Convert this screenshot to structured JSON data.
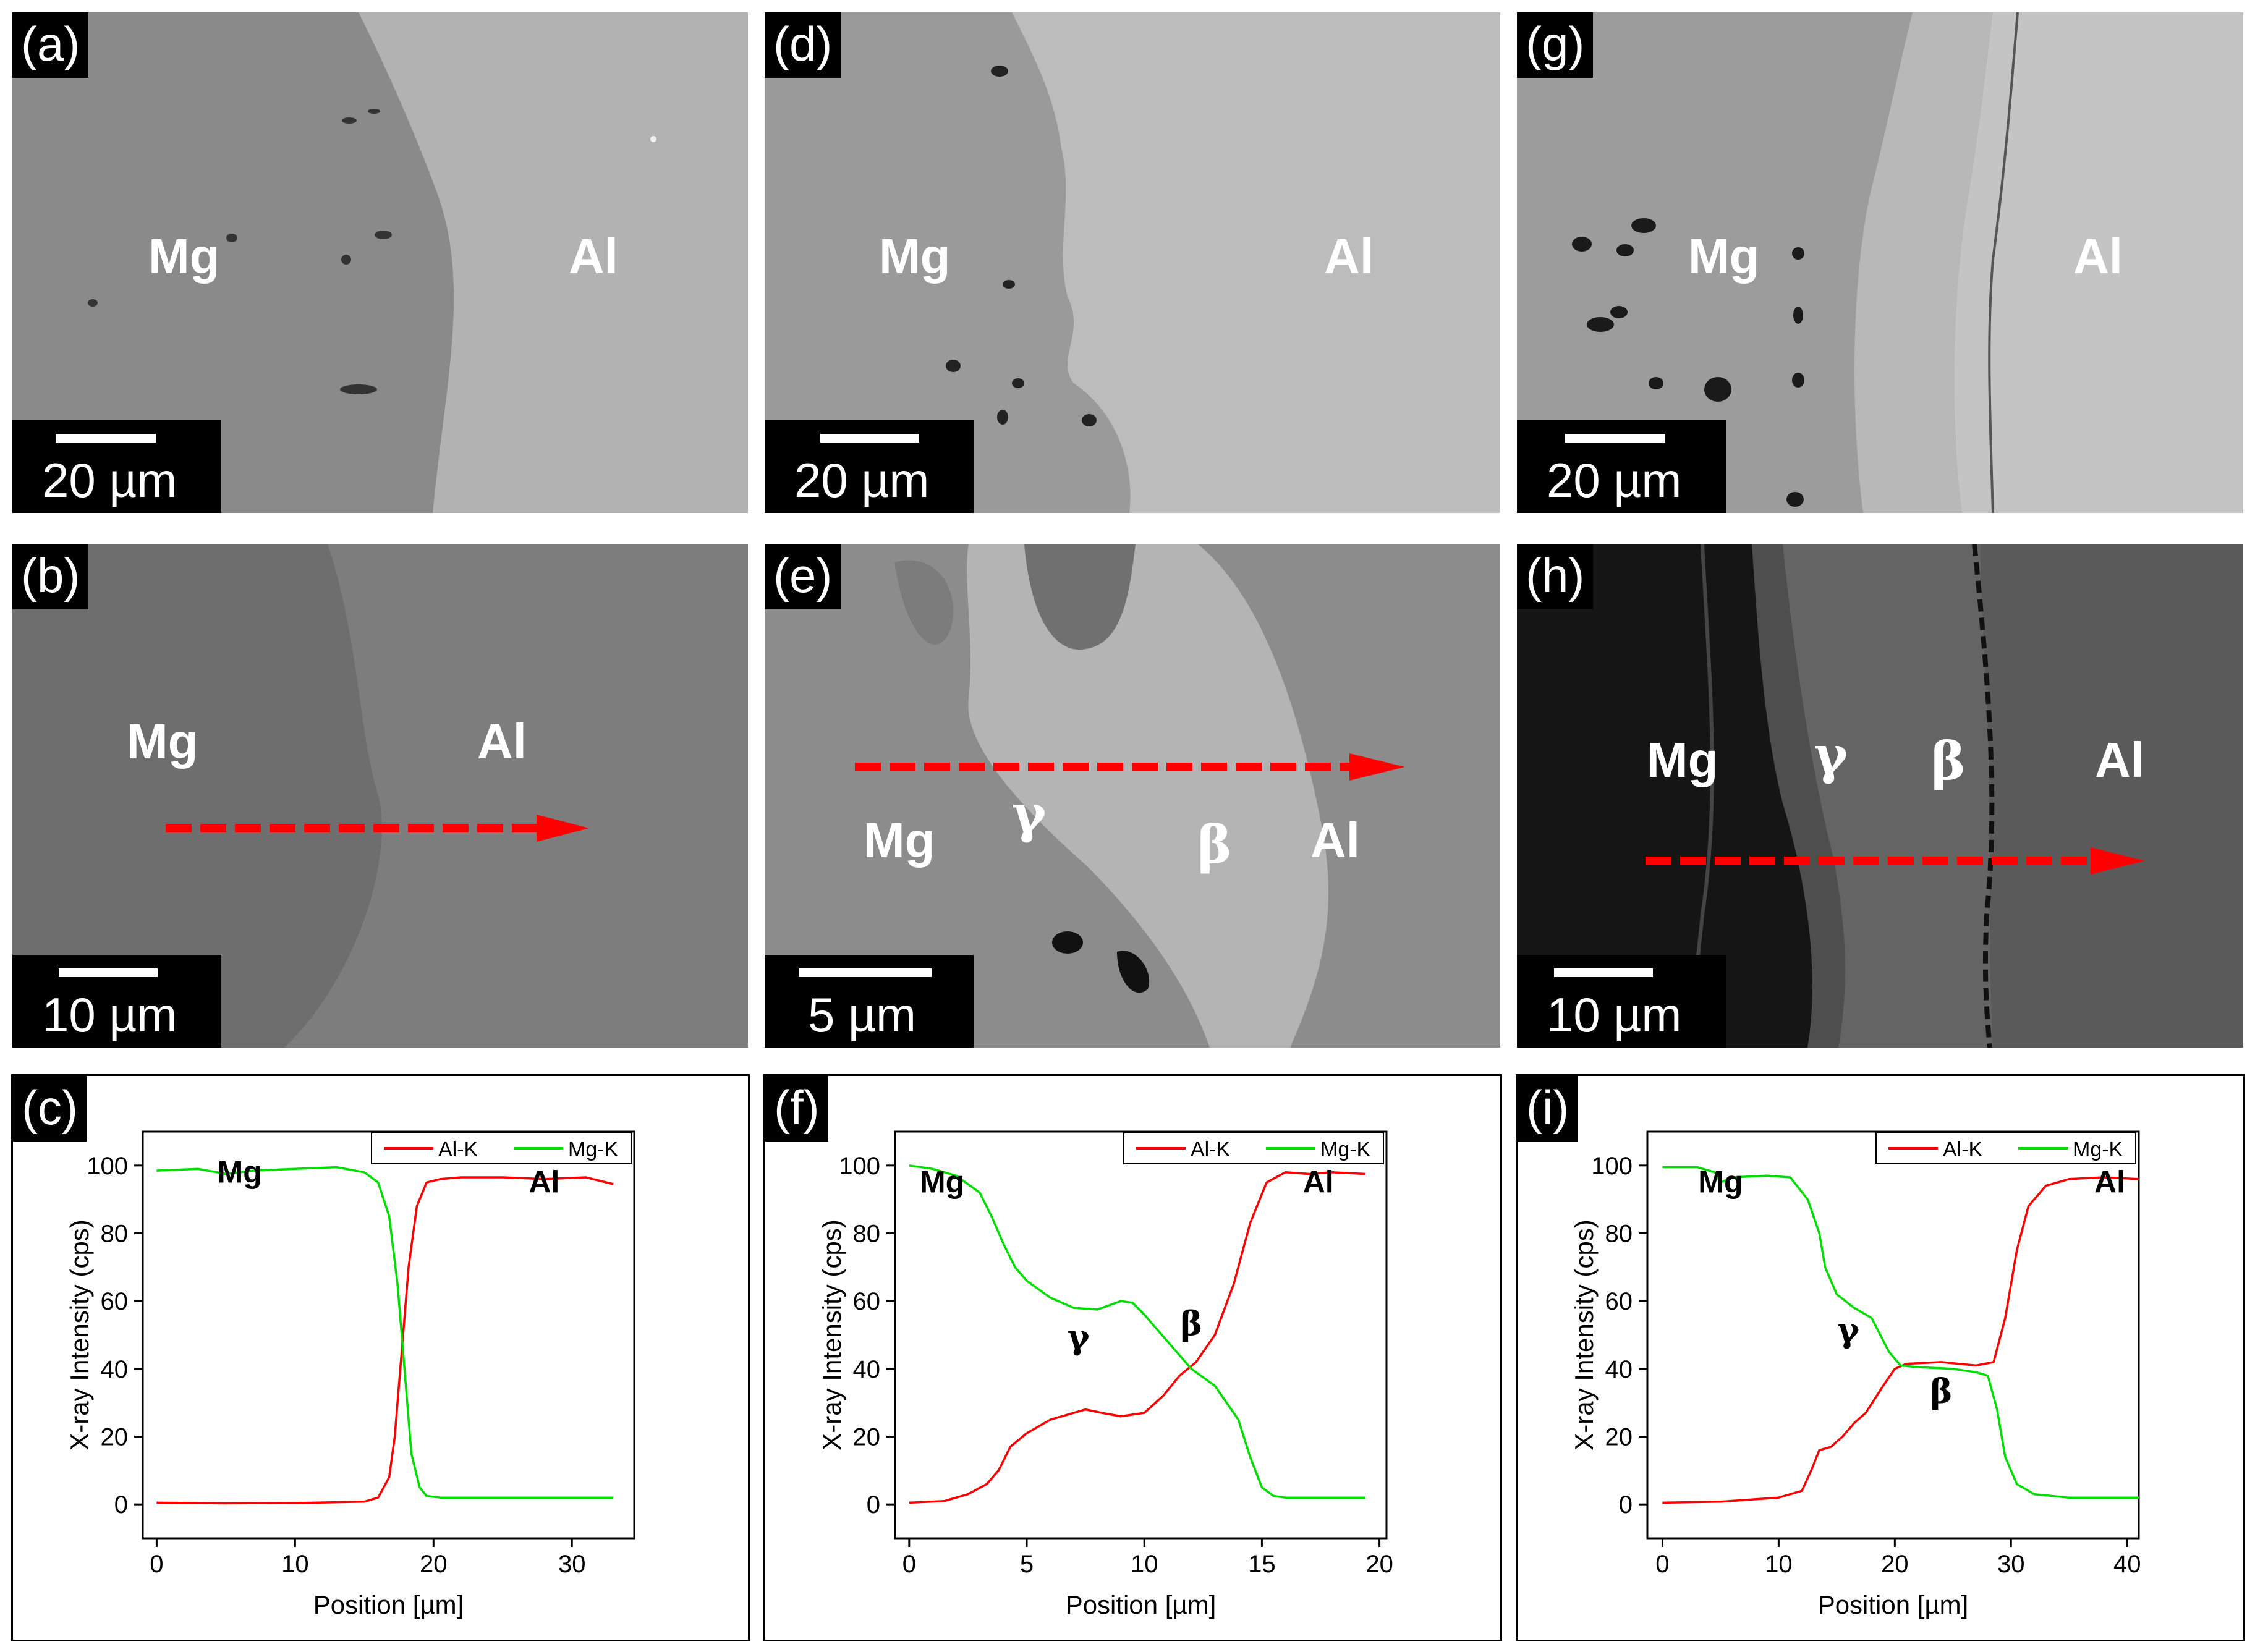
{
  "figure": {
    "panels": {
      "a": {
        "tag": "(a)",
        "left_label": "Mg",
        "right_label": "Al",
        "scale": "20 µm"
      },
      "b": {
        "tag": "(b)",
        "left_label": "Mg",
        "right_label": "Al",
        "scale": "10 µm"
      },
      "d": {
        "tag": "(d)",
        "left_label": "Mg",
        "right_label": "Al",
        "scale": "20 µm"
      },
      "e": {
        "tag": "(e)",
        "left_label": "Mg",
        "gamma": "γ",
        "beta": "β",
        "right_label": "Al",
        "scale": "5 µm"
      },
      "g": {
        "tag": "(g)",
        "left_label": "Mg",
        "right_label": "Al",
        "scale": "20 µm"
      },
      "h": {
        "tag": "(h)",
        "left_label": "Mg",
        "gamma": "γ",
        "beta": "β",
        "right_label": "Al",
        "scale": "10 µm"
      }
    },
    "colors": {
      "al": "#ff0000",
      "mg": "#00dd00",
      "arrow": "#ff0000"
    }
  },
  "chart_data": [
    {
      "id": "c",
      "tag": "(c)",
      "type": "line",
      "xlabel": "Position [µm]",
      "ylabel": "X-ray Intensity (cps)",
      "xlim": [
        -1,
        34.5
      ],
      "ylim": [
        -10,
        110
      ],
      "xticks": [
        0,
        10,
        20,
        30
      ],
      "yticks": [
        0,
        20,
        40,
        60,
        80,
        100
      ],
      "legend": [
        "Al-K",
        "Mg-K"
      ],
      "annotations": [
        {
          "text": "Mg",
          "x": 6,
          "y": 95
        },
        {
          "text": "Al",
          "x": 28,
          "y": 92
        }
      ],
      "series": [
        {
          "name": "Al-K",
          "x": [
            0,
            5,
            10,
            15,
            16,
            16.8,
            17.2,
            17.7,
            18.2,
            18.8,
            19.5,
            20.5,
            22,
            25,
            28,
            31,
            32,
            33
          ],
          "y": [
            0.5,
            0.3,
            0.4,
            0.8,
            2,
            8,
            20,
            45,
            70,
            88,
            95,
            96,
            96.5,
            96.5,
            96,
            96.5,
            95.5,
            94.5
          ]
        },
        {
          "name": "Mg-K",
          "x": [
            0,
            3,
            5,
            7,
            10,
            13,
            15,
            16,
            16.8,
            17.4,
            17.9,
            18.4,
            19,
            19.5,
            20.5,
            25,
            30,
            33
          ],
          "y": [
            98.5,
            99,
            97.5,
            98.5,
            99,
            99.5,
            98,
            95,
            85,
            65,
            40,
            15,
            5,
            2.5,
            2,
            2,
            2,
            2
          ]
        }
      ]
    },
    {
      "id": "f",
      "tag": "(f)",
      "type": "line",
      "xlabel": "Position [µm]",
      "ylabel": "X-ray Intensity (cps)",
      "xlim": [
        -0.6,
        20.3
      ],
      "ylim": [
        -10,
        110
      ],
      "xticks": [
        0,
        5,
        10,
        15,
        20
      ],
      "yticks": [
        0,
        20,
        40,
        60,
        80,
        100
      ],
      "legend": [
        "Al-K",
        "Mg-K"
      ],
      "annotations": [
        {
          "text": "Mg",
          "x": 1.4,
          "y": 92
        },
        {
          "text": "Al",
          "x": 17.4,
          "y": 92
        },
        {
          "text": "γ",
          "x": 7.2,
          "y": 46
        },
        {
          "text": "β",
          "x": 12,
          "y": 50
        }
      ],
      "series": [
        {
          "name": "Al-K",
          "x": [
            0,
            1.5,
            2.5,
            3.3,
            3.8,
            4.3,
            5,
            6,
            7,
            7.5,
            8.2,
            9,
            10,
            10.8,
            11.5,
            12.2,
            13,
            13.8,
            14.5,
            15.2,
            16,
            17,
            18,
            19.4
          ],
          "y": [
            0.5,
            1,
            3,
            6,
            10,
            17,
            21,
            25,
            27,
            28,
            27,
            26,
            27,
            32,
            38,
            42,
            50,
            65,
            83,
            95,
            98,
            97.5,
            98,
            97.5
          ]
        },
        {
          "name": "Mg-K",
          "x": [
            0,
            1,
            2,
            3,
            3.5,
            4,
            4.5,
            5,
            6,
            7,
            8,
            9,
            9.5,
            10,
            11,
            12,
            13,
            14,
            14.5,
            15,
            15.5,
            16,
            18,
            19.4
          ],
          "y": [
            100,
            99,
            97,
            92,
            85,
            77,
            70,
            66,
            61,
            58,
            57.5,
            60,
            59.5,
            56,
            48,
            40,
            35,
            25,
            14,
            5,
            2.5,
            2,
            2,
            2
          ]
        }
      ]
    },
    {
      "id": "i",
      "tag": "(i)",
      "type": "line",
      "xlabel": "Position [µm]",
      "ylabel": "X-ray Intensity (cps)",
      "xlim": [
        -1.3,
        41
      ],
      "ylim": [
        -10,
        110
      ],
      "xticks": [
        0,
        10,
        20,
        30,
        40
      ],
      "yticks": [
        0,
        20,
        40,
        60,
        80,
        100
      ],
      "legend": [
        "Al-K",
        "Mg-K"
      ],
      "annotations": [
        {
          "text": "Mg",
          "x": 5,
          "y": 92
        },
        {
          "text": "Al",
          "x": 38.5,
          "y": 92
        },
        {
          "text": "γ",
          "x": 16,
          "y": 48
        },
        {
          "text": "β",
          "x": 24,
          "y": 30
        }
      ],
      "series": [
        {
          "name": "Al-K",
          "x": [
            0,
            5,
            10,
            12,
            12.8,
            13.5,
            14.5,
            15.5,
            16.5,
            17.5,
            19,
            20,
            21,
            24,
            27,
            28.5,
            29.5,
            30.5,
            31.5,
            33,
            35,
            38,
            41
          ],
          "y": [
            0.5,
            0.8,
            2,
            4,
            10,
            16,
            17,
            20,
            24,
            27,
            35,
            40,
            41.5,
            42,
            41,
            42,
            55,
            75,
            88,
            94,
            96,
            96.5,
            96
          ]
        },
        {
          "name": "Mg-K",
          "x": [
            0,
            3,
            4.5,
            5,
            6,
            9,
            11,
            12.5,
            13.5,
            14,
            15,
            16.5,
            18,
            19.5,
            20.5,
            22,
            25,
            27,
            28,
            28.8,
            29.5,
            30.5,
            32,
            35,
            41
          ],
          "y": [
            99.5,
            99.5,
            98,
            95,
            96.5,
            97,
            96.5,
            90,
            80,
            70,
            62,
            58,
            55,
            45,
            41,
            40.5,
            40,
            39,
            38,
            28,
            14,
            6,
            3,
            2,
            2
          ]
        }
      ]
    }
  ]
}
